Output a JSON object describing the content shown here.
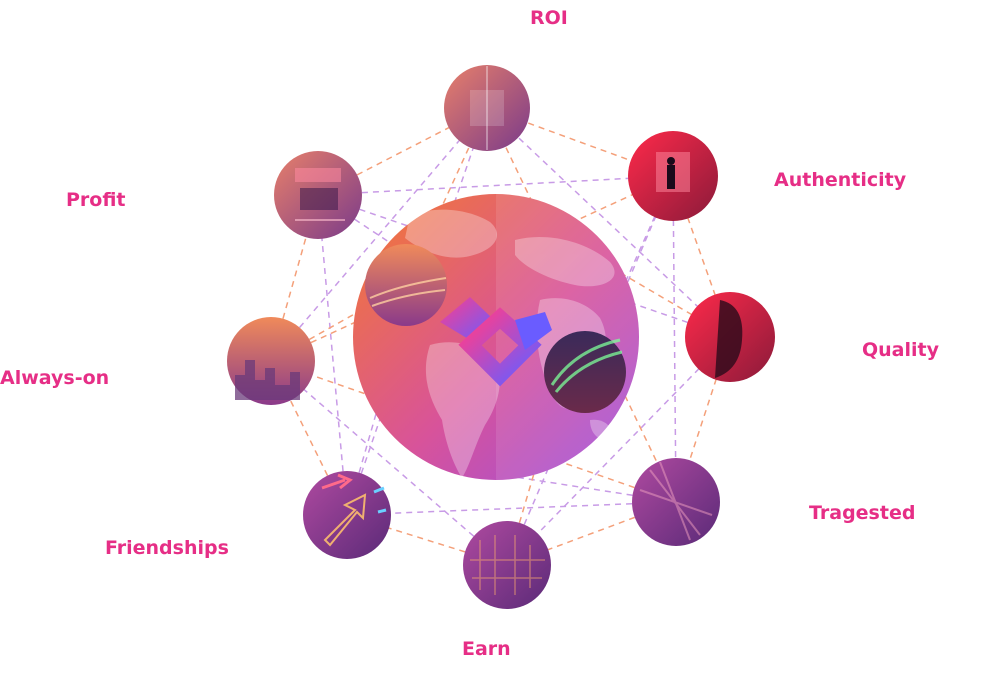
{
  "labels": {
    "roi": "ROI",
    "authenticity": "Authenticity",
    "quality": "Quality",
    "targeted": "Tragested",
    "earn": "Earn",
    "friendships": "Friendships",
    "always_on": "Always-on",
    "profit": "Profit"
  },
  "icons": {
    "center": "globe-icon",
    "logo": "brand-logo-icon"
  },
  "colors": {
    "label": "#e62e86",
    "line_orange": "#f4a07a",
    "line_purple": "#c89be6",
    "grad_orange": "#f47a2e",
    "grad_pink": "#d8539a",
    "grad_purple": "#9b4fe0",
    "logo_pink": "#ff3d8b",
    "logo_purple": "#6a5cff"
  }
}
